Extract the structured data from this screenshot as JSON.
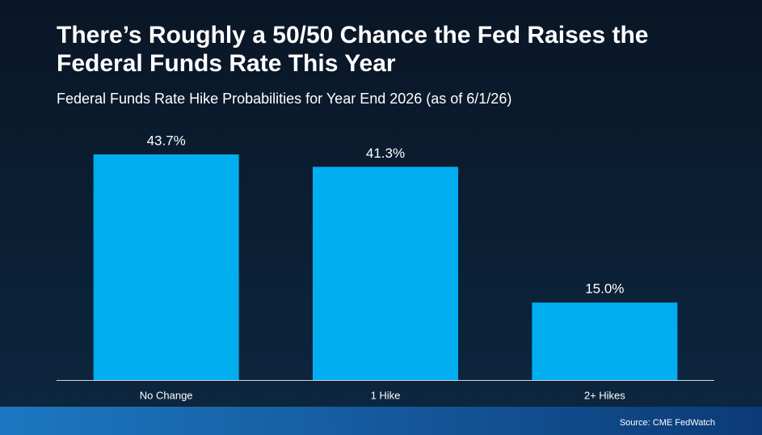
{
  "chart_data": {
    "type": "bar",
    "title": [
      "There’s Roughly a 50/50 Chance the Fed Raises the",
      "Federal Funds Rate This Year"
    ],
    "subtitle": "Federal Funds Rate Hike Probabilities for Year End 2026 (as of 6/1/26)",
    "categories": [
      "No Change",
      "1 Hike",
      "2+ Hikes"
    ],
    "values": [
      43.7,
      41.3,
      15.0
    ],
    "value_labels": [
      "43.7%",
      "41.3%",
      "15.0%"
    ],
    "color": "#00aeef",
    "source": "Source: CME FedWatch"
  }
}
